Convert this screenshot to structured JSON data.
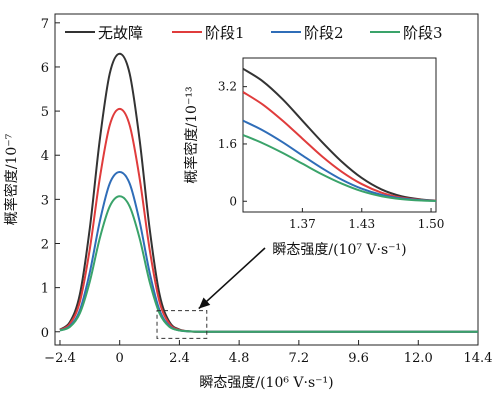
{
  "chart_data": [
    {
      "type": "line",
      "role": "main",
      "xlabel": "瞬态强度/(10⁶ V·s⁻¹)",
      "ylabel": "概率密度/10⁻⁷",
      "xlim": [
        -2.6,
        14.4
      ],
      "ylim": [
        -0.3,
        7.2
      ],
      "xticks": [
        -2.4,
        0,
        2.4,
        4.8,
        7.2,
        9.6,
        12.0,
        14.4
      ],
      "xtick_labels": [
        "−2.4",
        "0",
        "2.4",
        "4.8",
        "7.2",
        "9.6",
        "12.0",
        "14.4"
      ],
      "yticks": [
        0,
        1,
        2,
        3,
        4,
        5,
        6,
        7
      ],
      "ytick_labels": [
        "0",
        "1",
        "2",
        "3",
        "4",
        "5",
        "6",
        "7"
      ],
      "x": [
        -2.4,
        -2.0,
        -1.6,
        -1.2,
        -0.8,
        -0.4,
        0.0,
        0.4,
        0.8,
        1.2,
        1.6,
        2.0,
        2.4,
        2.8,
        3.2,
        4.0,
        4.8,
        7.2,
        9.6,
        12.0,
        14.4
      ],
      "series": [
        {
          "name": "无故障",
          "color": "#333333",
          "values": [
            0.05,
            0.22,
            0.85,
            2.35,
            4.35,
            5.85,
            6.3,
            5.85,
            4.35,
            2.35,
            0.85,
            0.22,
            0.05,
            0.01,
            0.0,
            0.0,
            0.0,
            0.0,
            0.0,
            0.0,
            0.0
          ]
        },
        {
          "name": "阶段1",
          "color": "#e03c3c",
          "values": [
            0.04,
            0.18,
            0.68,
            1.88,
            3.48,
            4.68,
            5.05,
            4.68,
            3.48,
            1.88,
            0.68,
            0.18,
            0.04,
            0.01,
            0.0,
            0.0,
            0.0,
            0.0,
            0.0,
            0.0,
            0.0
          ]
        },
        {
          "name": "阶段2",
          "color": "#2f6db8",
          "values": [
            0.03,
            0.13,
            0.49,
            1.35,
            2.5,
            3.36,
            3.62,
            3.36,
            2.5,
            1.35,
            0.49,
            0.13,
            0.03,
            0.01,
            0.0,
            0.0,
            0.0,
            0.0,
            0.0,
            0.0,
            0.0
          ]
        },
        {
          "name": "阶段3",
          "color": "#3aa36a",
          "values": [
            0.03,
            0.11,
            0.42,
            1.14,
            2.12,
            2.84,
            3.07,
            2.84,
            2.12,
            1.14,
            0.42,
            0.11,
            0.03,
            0.01,
            0.0,
            0.0,
            0.0,
            0.0,
            0.0,
            0.0,
            0.0
          ]
        }
      ],
      "zoom_region": {
        "x": [
          1.5,
          3.5
        ],
        "y": [
          -0.15,
          0.48
        ]
      },
      "legend": "top",
      "grid": false
    },
    {
      "type": "line",
      "role": "inset",
      "xlabel": "瞬态强度/(10⁷ V·s⁻¹)",
      "ylabel": "概率密度/10⁻¹³",
      "xlim": [
        1.31,
        1.505
      ],
      "ylim": [
        -0.3,
        4.0
      ],
      "xticks": [
        1.37,
        1.43,
        1.5
      ],
      "xtick_labels": [
        "1.37",
        "1.43",
        "1.50"
      ],
      "yticks": [
        0,
        1.6,
        3.2
      ],
      "ytick_labels": [
        "0",
        "1.6",
        "3.2"
      ],
      "x": [
        1.31,
        1.33,
        1.35,
        1.37,
        1.39,
        1.41,
        1.43,
        1.45,
        1.47,
        1.49,
        1.505
      ],
      "series": [
        {
          "name": "无故障",
          "color": "#333333",
          "values": [
            3.7,
            3.35,
            2.85,
            2.25,
            1.65,
            1.1,
            0.65,
            0.33,
            0.14,
            0.05,
            0.02
          ]
        },
        {
          "name": "阶段1",
          "color": "#e03c3c",
          "values": [
            3.05,
            2.7,
            2.25,
            1.75,
            1.25,
            0.82,
            0.48,
            0.24,
            0.1,
            0.04,
            0.02
          ]
        },
        {
          "name": "阶段2",
          "color": "#2f6db8",
          "values": [
            2.25,
            1.98,
            1.65,
            1.28,
            0.92,
            0.6,
            0.35,
            0.18,
            0.08,
            0.03,
            0.01
          ]
        },
        {
          "name": "阶段3",
          "color": "#3aa36a",
          "values": [
            1.85,
            1.62,
            1.35,
            1.05,
            0.75,
            0.49,
            0.28,
            0.14,
            0.06,
            0.02,
            0.01
          ]
        }
      ],
      "grid": false
    }
  ]
}
